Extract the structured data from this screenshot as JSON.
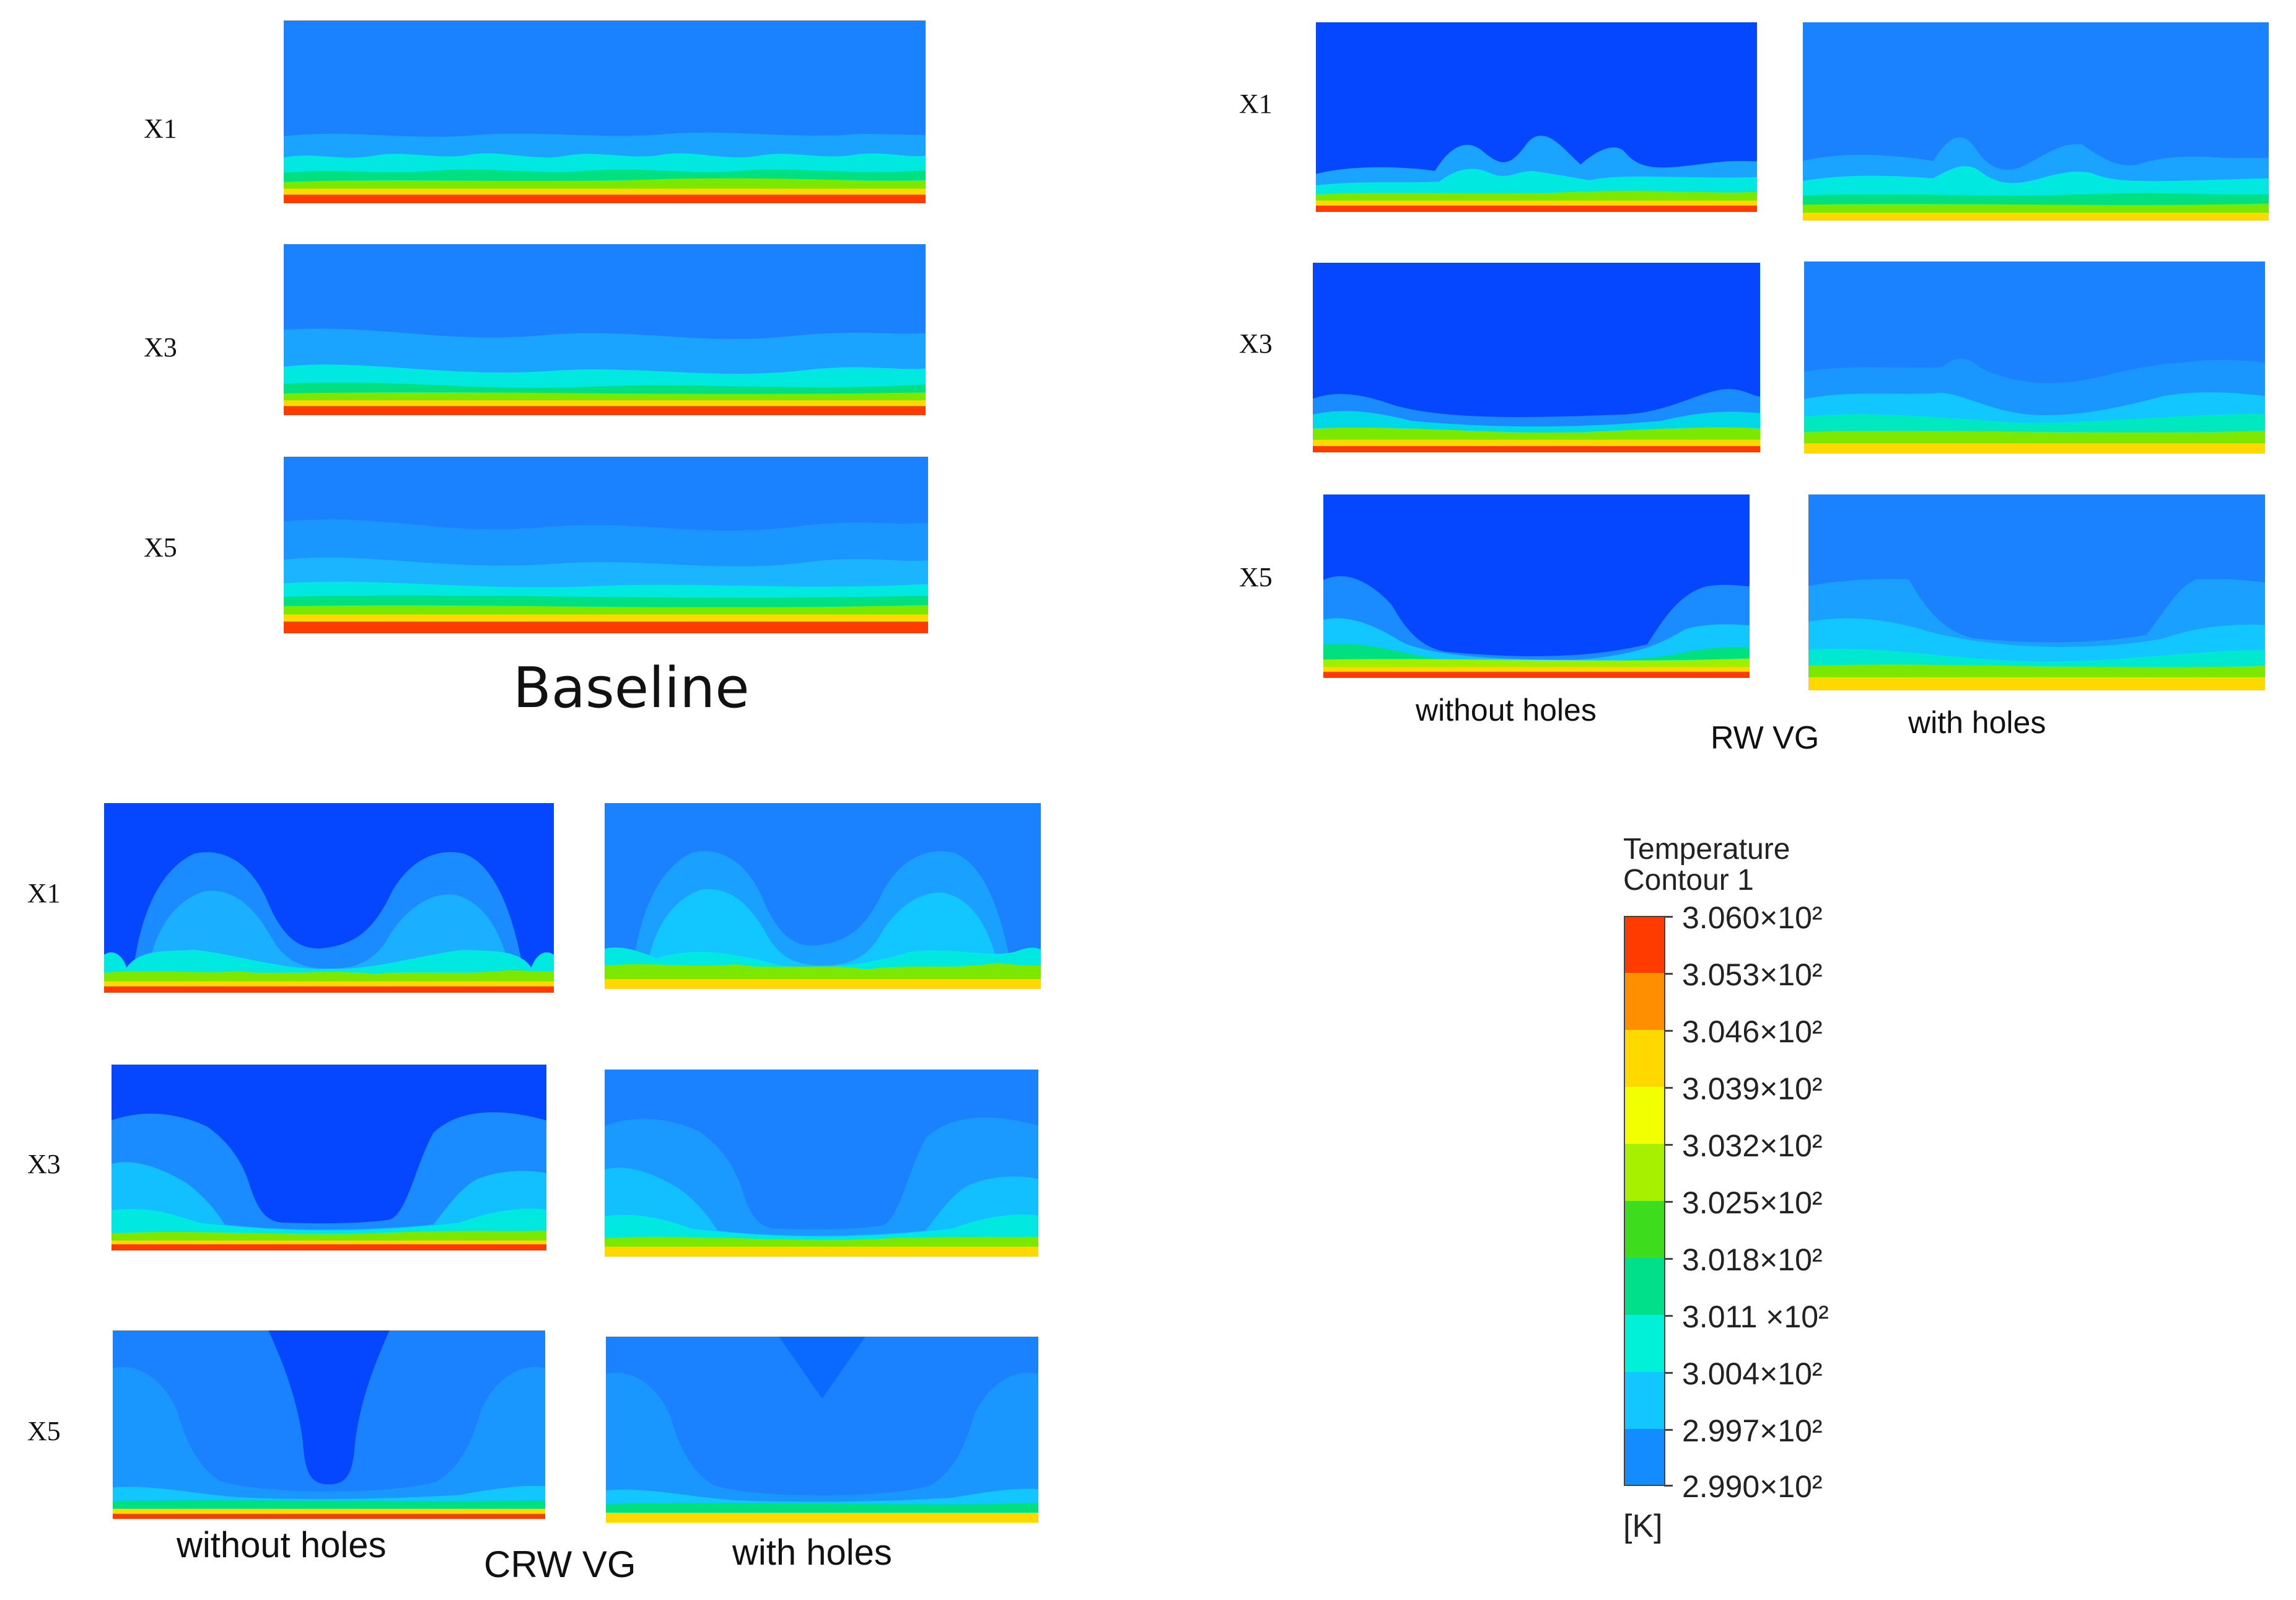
{
  "sections": {
    "baseline": {
      "title": "Baseline",
      "rows": [
        "X1",
        "X3",
        "X5"
      ]
    },
    "rw_vg": {
      "title": "RW VG",
      "rows": [
        "X1",
        "X3",
        "X5"
      ],
      "left_caption": "without holes",
      "right_caption": "with holes"
    },
    "crw_vg": {
      "title": "CRW VG",
      "rows": [
        "X1",
        "X3",
        "X5"
      ],
      "left_caption": "without holes",
      "right_caption": "with holes"
    }
  },
  "colorbar": {
    "title_line1": "Temperature",
    "title_line2": "Contour 1",
    "unit": "[K]",
    "ticks": [
      "3.060×10²",
      "3.053×10²",
      "3.046×10²",
      "3.039×10²",
      "3.032×10²",
      "3.025×10²",
      "3.018×10²",
      "3.011 ×10²",
      "3.004×10²",
      "2.997×10²",
      "2.990×10²"
    ],
    "colors": [
      "#ff3b00",
      "#ff8e00",
      "#ffd800",
      "#f2ff00",
      "#a6f000",
      "#3ddc1c",
      "#00e08a",
      "#00f0d8",
      "#12c6ff",
      "#128cff",
      "#0546ff"
    ]
  }
}
